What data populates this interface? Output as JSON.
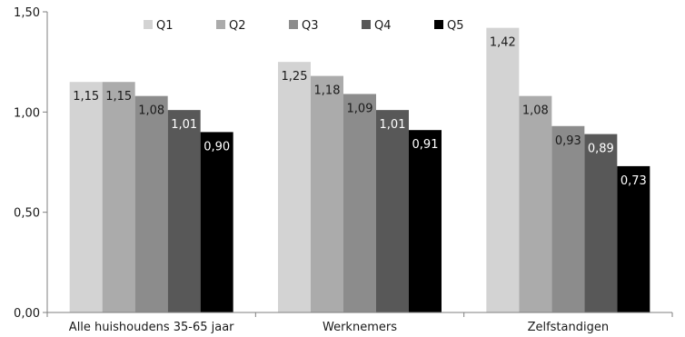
{
  "chart_data": {
    "type": "bar",
    "title": "",
    "xlabel": "",
    "ylabel": "",
    "categories": [
      "Alle huishoudens 35-65 jaar",
      "Werknemers",
      "Zelfstandigen"
    ],
    "series": [
      {
        "name": "Q1",
        "values": [
          1.15,
          1.25,
          1.42
        ],
        "labels": [
          "1,15",
          "1,25",
          "1,42"
        ],
        "color": "#d3d3d3",
        "label_color": "#1a1a1a"
      },
      {
        "name": "Q2",
        "values": [
          1.15,
          1.18,
          1.08
        ],
        "labels": [
          "1,15",
          "1,18",
          "1,08"
        ],
        "color": "#ababab",
        "label_color": "#1a1a1a"
      },
      {
        "name": "Q3",
        "values": [
          1.08,
          1.09,
          0.93
        ],
        "labels": [
          "1,08",
          "1,09",
          "0,93"
        ],
        "color": "#8c8c8c",
        "label_color": "#1a1a1a"
      },
      {
        "name": "Q4",
        "values": [
          1.01,
          1.01,
          0.89
        ],
        "labels": [
          "1,01",
          "1,01",
          "0,89"
        ],
        "color": "#585858",
        "label_color": "#ffffff"
      },
      {
        "name": "Q5",
        "values": [
          0.9,
          0.91,
          0.73
        ],
        "labels": [
          "0,90",
          "0,91",
          "0,73"
        ],
        "color": "#000000",
        "label_color": "#ffffff"
      }
    ],
    "ylim": [
      0,
      1.5
    ],
    "yticks": [
      0,
      0.5,
      1.0,
      1.5
    ],
    "ytick_labels": [
      "0,00",
      "0,50",
      "1,00",
      "1,50"
    ],
    "grid": false,
    "legend": "top"
  }
}
